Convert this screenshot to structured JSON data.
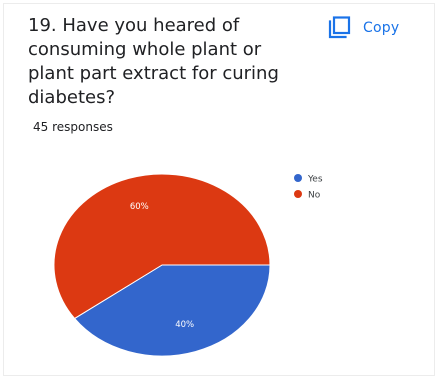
{
  "question": {
    "title": "19. Have you heared of consuming whole plant or plant part extract for curing diabetes?",
    "responses": "45 responses"
  },
  "toolbar": {
    "copy_label": "Copy",
    "copy_icon": "copy-icon"
  },
  "colors": {
    "title": "#202124",
    "accent": "#1a73e8"
  },
  "chart_data": {
    "type": "pie",
    "slices": [
      {
        "label": "Yes",
        "value": 40,
        "display": "40%",
        "color": "#3366cc"
      },
      {
        "label": "No",
        "value": 60,
        "display": "60%",
        "color": "#dc3912"
      }
    ],
    "legend": {
      "placement": "right",
      "entries": [
        "Yes",
        "No"
      ]
    }
  }
}
